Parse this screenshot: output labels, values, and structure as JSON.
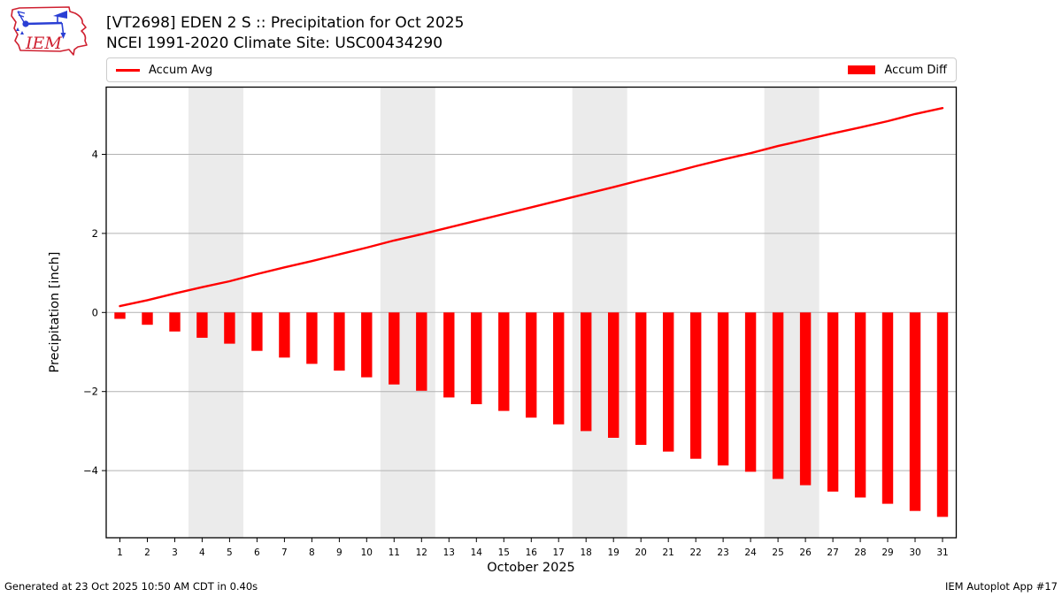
{
  "header": {
    "logo_text": "IEM"
  },
  "legend": {
    "items": [
      {
        "label": "Accum Avg",
        "swatch": "line",
        "color": "#ff0000"
      },
      {
        "label": "Accum Diff",
        "swatch": "patch",
        "color": "#ff0000"
      }
    ]
  },
  "footer": {
    "left": "Generated at 23 Oct 2025 10:50 AM CDT in 0.40s",
    "right": "IEM Autoplot App #17"
  },
  "chart_data": {
    "type": "bar",
    "title": "[VT2698] EDEN 2 S :: Precipitation for Oct 2025",
    "subtitle": "NCEI 1991-2020 Climate Site: USC00434290",
    "xlabel": "October 2025",
    "ylabel": "Precipitation [inch]",
    "x": [
      1,
      2,
      3,
      4,
      5,
      6,
      7,
      8,
      9,
      10,
      11,
      12,
      13,
      14,
      15,
      16,
      17,
      18,
      19,
      20,
      21,
      22,
      23,
      24,
      25,
      26,
      27,
      28,
      29,
      30,
      31
    ],
    "series": [
      {
        "name": "Accum Avg",
        "type": "line",
        "color": "#ff0000",
        "values": [
          0.16,
          0.31,
          0.48,
          0.64,
          0.79,
          0.97,
          1.14,
          1.3,
          1.47,
          1.64,
          1.82,
          1.98,
          2.15,
          2.32,
          2.49,
          2.66,
          2.83,
          3.0,
          3.17,
          3.35,
          3.52,
          3.7,
          3.87,
          4.03,
          4.21,
          4.37,
          4.53,
          4.68,
          4.84,
          5.02,
          5.17
        ]
      },
      {
        "name": "Accum Diff",
        "type": "bar",
        "color": "#ff0000",
        "values": [
          -0.16,
          -0.31,
          -0.48,
          -0.64,
          -0.79,
          -0.97,
          -1.14,
          -1.3,
          -1.47,
          -1.64,
          -1.82,
          -1.98,
          -2.15,
          -2.32,
          -2.49,
          -2.66,
          -2.83,
          -3.0,
          -3.17,
          -3.35,
          -3.52,
          -3.7,
          -3.87,
          -4.03,
          -4.21,
          -4.37,
          -4.53,
          -4.68,
          -4.84,
          -5.02,
          -5.17
        ]
      }
    ],
    "ylim": [
      -5.7,
      5.73
    ],
    "yticks": [
      4,
      2,
      0,
      -2,
      -4
    ],
    "grid": "horizontal",
    "legend_position": "top",
    "weekend_bands": [
      [
        4,
        5
      ],
      [
        11,
        12
      ],
      [
        18,
        19
      ],
      [
        25,
        26
      ]
    ],
    "colors": {
      "band": "#ebebeb",
      "grid": "#b2b2b2",
      "frame": "#000000"
    }
  }
}
